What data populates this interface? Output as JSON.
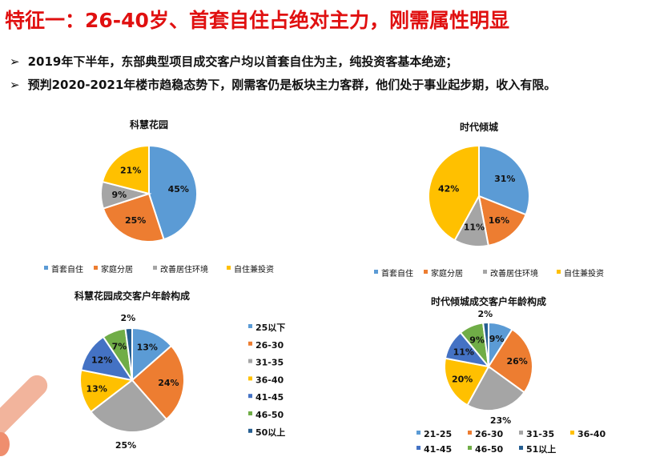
{
  "title": "特征一：26-40岁、首套自住占绝对主力，刚需属性明显",
  "bullets": [
    "2019年下半年，东部典型项目成交客户均以首套自住为主，纯投资客基本绝迹；",
    "预判2020-2021年楼市趋稳态势下，刚需客仍是板块主力客群，他们处于事业起步期，收入有限。"
  ],
  "chart_data": [
    {
      "type": "pie",
      "title": "科慧花园",
      "categories": [
        "首套自住",
        "家庭分居",
        "改善居住环境",
        "自住兼投资"
      ],
      "values": [
        45,
        25,
        9,
        21
      ],
      "labels": [
        "45%",
        "25%",
        "9%",
        "21%"
      ],
      "colors": [
        "#5B9BD5",
        "#ED7D31",
        "#A5A5A5",
        "#FFC000"
      ],
      "legend": "bottom"
    },
    {
      "type": "pie",
      "title": "时代倾城",
      "categories": [
        "首套自住",
        "家庭分居",
        "改善居住环境",
        "自住兼投资"
      ],
      "values": [
        31,
        16,
        11,
        42
      ],
      "labels": [
        "31%",
        "16%",
        "11%",
        "42%"
      ],
      "colors": [
        "#5B9BD5",
        "#ED7D31",
        "#A5A5A5",
        "#FFC000"
      ],
      "legend": "bottom"
    },
    {
      "type": "pie",
      "title": "科慧花园成交客户年龄构成",
      "categories": [
        "25以下",
        "26-30",
        "31-35",
        "36-40",
        "41-45",
        "46-50",
        "50以上"
      ],
      "values": [
        13,
        24,
        25,
        13,
        12,
        7,
        2
      ],
      "labels": [
        "13%",
        "24%",
        "25%",
        "13%",
        "12%",
        "7%",
        "2%"
      ],
      "colors": [
        "#5B9BD5",
        "#ED7D31",
        "#A5A5A5",
        "#FFC000",
        "#4472C4",
        "#70AD47",
        "#255E91"
      ],
      "legend": "right"
    },
    {
      "type": "pie",
      "title": "时代倾城成交客户年龄构成",
      "categories": [
        "21-25",
        "26-30",
        "31-35",
        "36-40",
        "41-45",
        "46-50",
        "51以上"
      ],
      "values": [
        9,
        26,
        23,
        20,
        11,
        9,
        2
      ],
      "labels": [
        "9%",
        "26%",
        "23%",
        "20%",
        "11%",
        "9%",
        "2%"
      ],
      "colors": [
        "#5B9BD5",
        "#ED7D31",
        "#A5A5A5",
        "#FFC000",
        "#4472C4",
        "#70AD47",
        "#255E91"
      ],
      "legend": "bottom"
    }
  ]
}
